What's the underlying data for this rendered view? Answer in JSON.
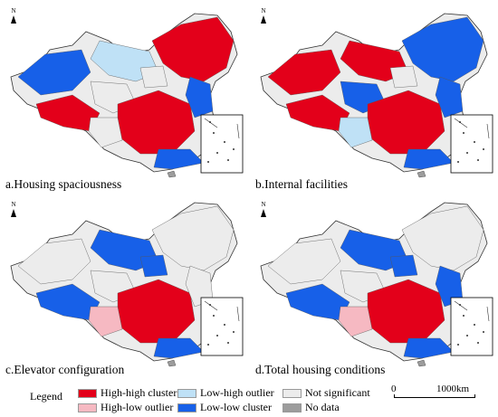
{
  "panels": [
    {
      "caption": "a.Housing spaciousness",
      "palette": [
        "hh",
        "lh",
        "ll",
        "hh",
        "ns",
        "hh",
        "ll",
        "ns",
        "ll",
        "ns"
      ]
    },
    {
      "caption": "b.Internal facilities",
      "palette": [
        "ll",
        "hh",
        "hh",
        "hh",
        "ll",
        "hh",
        "ll",
        "lh",
        "ll",
        "ns"
      ]
    },
    {
      "caption": "c.Elevator configuration",
      "palette": [
        "ns",
        "ll",
        "ns",
        "ll",
        "ns",
        "hh",
        "ll",
        "hl",
        "ns",
        "ll"
      ]
    },
    {
      "caption": "d.Total housing conditions",
      "palette": [
        "ns",
        "ll",
        "ns",
        "ll",
        "ns",
        "hh",
        "ll",
        "hl",
        "ll",
        "ll"
      ]
    }
  ],
  "north_label": "N",
  "legend": {
    "title": "Legend",
    "items": [
      {
        "key": "hh",
        "label": "High-high cluster",
        "color": "#e3001a"
      },
      {
        "key": "hl",
        "label": "High-low outlier",
        "color": "#f6b9c2"
      },
      {
        "key": "lh",
        "label": "Low-high outlier",
        "color": "#bfe1f6"
      },
      {
        "key": "ll",
        "label": "Low-low cluster",
        "color": "#1760e8"
      },
      {
        "key": "ns",
        "label": "Not significant",
        "color": "#ececec"
      },
      {
        "key": "nd",
        "label": "No data",
        "color": "#9c9c9c"
      }
    ]
  },
  "scale_bar": {
    "start": "0",
    "end": "1000km"
  }
}
